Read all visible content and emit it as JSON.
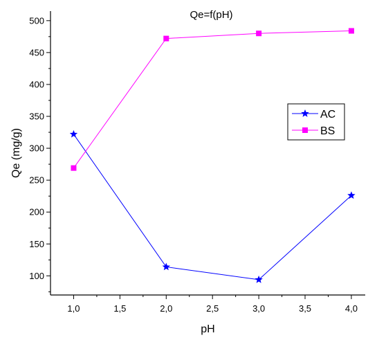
{
  "chart_data": {
    "type": "line",
    "title": "Qe=f(pH)",
    "xlabel": "pH",
    "ylabel": "Qe (mg/g)",
    "xlim": [
      0.75,
      4.15
    ],
    "ylim": [
      70,
      515
    ],
    "x_ticks": [
      1.0,
      1.5,
      2.0,
      2.5,
      3.0,
      3.5,
      4.0
    ],
    "x_tick_labels": [
      "1,0",
      "1,5",
      "2,0",
      "2,5",
      "3,0",
      "3,5",
      "4,0"
    ],
    "y_ticks": [
      100,
      150,
      200,
      250,
      300,
      350,
      400,
      450,
      500
    ],
    "y_tick_labels": [
      "100",
      "150",
      "200",
      "250",
      "300",
      "350",
      "400",
      "450",
      "500"
    ],
    "grid": false,
    "legend_position": "center-right",
    "series": [
      {
        "name": "AC",
        "color": "#0000ff",
        "marker": "star",
        "x": [
          1,
          2,
          3,
          4
        ],
        "y": [
          322,
          114,
          94,
          226
        ]
      },
      {
        "name": "BS",
        "color": "#ff00ff",
        "marker": "square",
        "x": [
          1,
          2,
          3,
          4
        ],
        "y": [
          269,
          472,
          480,
          484
        ]
      }
    ]
  }
}
